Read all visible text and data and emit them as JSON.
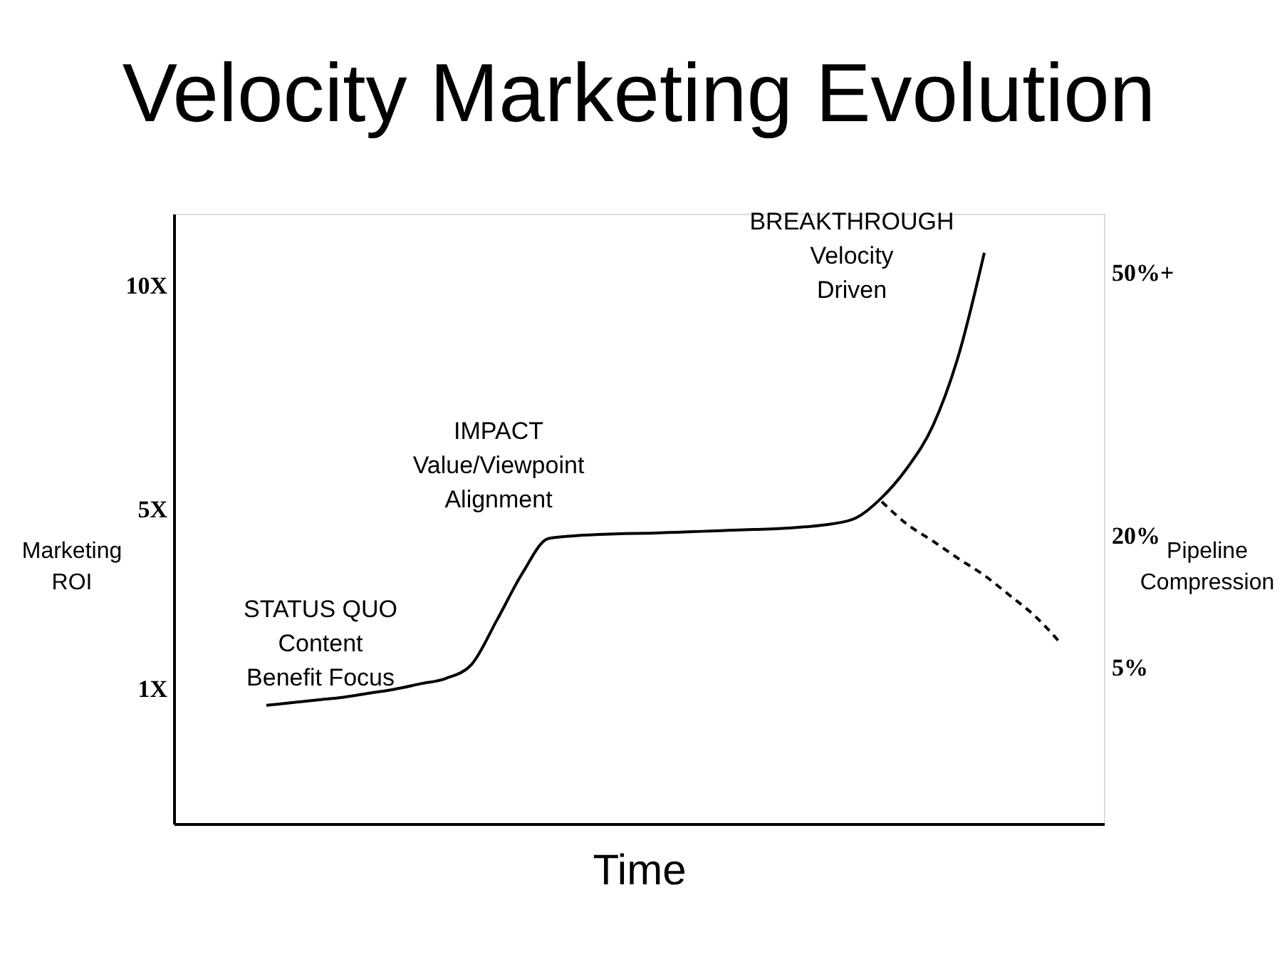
{
  "chart_data": {
    "type": "line",
    "title": "Velocity Marketing Evolution",
    "xlabel": "Time",
    "ylabel": "Marketing ROI",
    "y2label": "Pipeline Compression",
    "categories": [
      null,
      null,
      null,
      null,
      null,
      null,
      null,
      null,
      null,
      null,
      null,
      null,
      null,
      null,
      null,
      null,
      null,
      null,
      null,
      null,
      null,
      null,
      null,
      null,
      null,
      null,
      null,
      null,
      null,
      null,
      null,
      null
    ],
    "series": [
      {
        "color": "#000000",
        "line_style": "solid",
        "values": [
          0.64,
          0.7,
          0.76,
          0.82,
          0.91,
          1.0,
          1.12,
          1.24,
          1.55,
          2.55,
          3.6,
          4.36,
          4.42,
          4.45,
          4.47,
          4.48,
          4.5,
          4.52,
          4.54,
          4.56,
          4.58,
          4.62,
          4.68,
          4.82,
          5.27,
          5.94,
          6.88,
          8.45,
          10.73,
          null,
          null,
          null
        ]
      },
      {
        "color": "#000000",
        "line_style": "dashed",
        "axis": "y2",
        "values": [
          null,
          null,
          null,
          null,
          null,
          null,
          null,
          null,
          null,
          null,
          null,
          null,
          null,
          null,
          null,
          null,
          null,
          null,
          null,
          null,
          null,
          null,
          null,
          null,
          23.9,
          21.3,
          19.4,
          17.4,
          15.5,
          13.2,
          10.8,
          7.7
        ]
      }
    ],
    "ylim": [
      -2,
      11.6
    ],
    "yticks": [
      {
        "value": 1,
        "label": "1X"
      },
      {
        "value": 5,
        "label": "5X"
      },
      {
        "value": 10,
        "label": "10X"
      }
    ],
    "y2lim": [
      -12.8,
      56.7
    ],
    "y2ticks": [
      {
        "value": 5,
        "label": "5%"
      },
      {
        "value": 20,
        "label": "20%"
      },
      {
        "value": 50,
        "label": "50%+"
      }
    ],
    "grid": false,
    "annotations": [
      "STATUS QUO\nContent\nBenefit Focus",
      "IMPACT\nValue/Viewpoint\nAlignment",
      "BREAKTHROUGH\nVelocity\nDriven"
    ]
  }
}
